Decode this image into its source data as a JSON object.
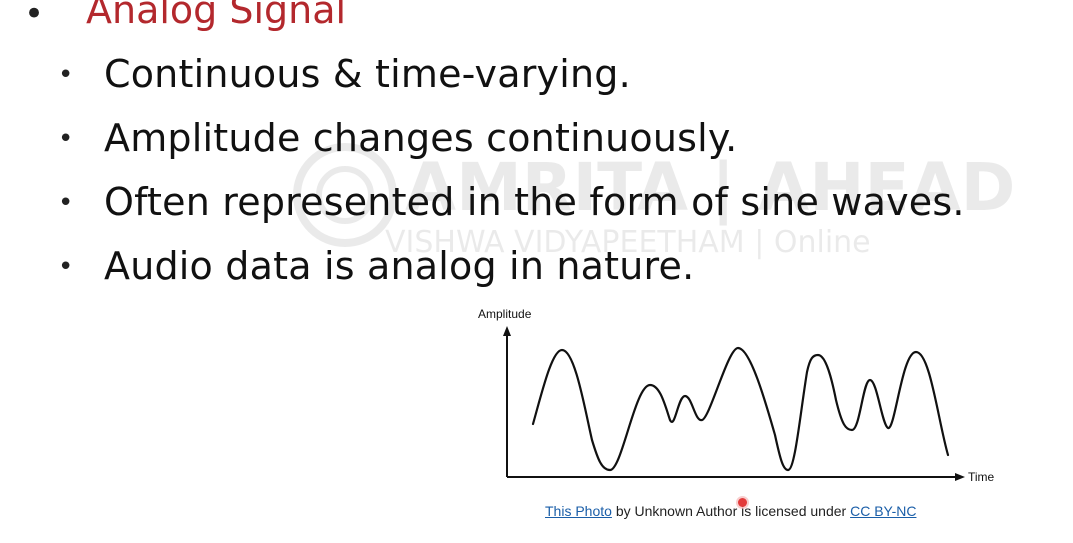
{
  "slide": {
    "heading": "Analog Signal",
    "bullets": [
      "Continuous & time-varying.",
      "Amplitude changes continuously.",
      "Often represented in the form of sine waves.",
      "Audio data is analog in nature."
    ]
  },
  "watermark": {
    "line1": "AMRITA | AHEAD",
    "line2": "VISHWA VIDYAPEETHAM | Online"
  },
  "figure": {
    "y_axis_label": "Amplitude",
    "x_axis_label": "Time"
  },
  "caption": {
    "photo_link": "This Photo",
    "by_text": " by Unknown Author is licensed under ",
    "license_link": "CC BY-NC"
  },
  "colors": {
    "heading": "#b3282d",
    "link": "#1a5ea8",
    "cursor": "#e23b3b"
  }
}
